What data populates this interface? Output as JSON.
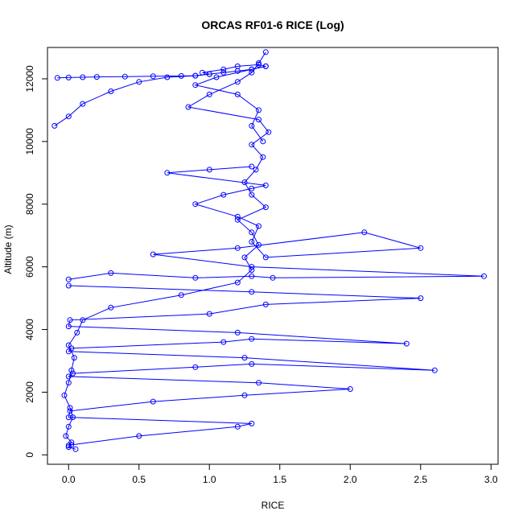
{
  "chart_data": {
    "type": "line",
    "title": "ORCAS RF01-6 RICE (Log)",
    "xlabel": "RICE",
    "ylabel": "Altitude (m)",
    "xlim": [
      -0.15,
      3.05
    ],
    "ylim": [
      -300,
      13000
    ],
    "xticks": [
      0.0,
      0.5,
      1.0,
      1.5,
      2.0,
      2.5,
      3.0
    ],
    "xtick_labels": [
      "0.0",
      "0.5",
      "1.0",
      "1.5",
      "2.0",
      "2.5",
      "3.0"
    ],
    "yticks": [
      0,
      2000,
      4000,
      6000,
      8000,
      10000,
      12000
    ],
    "ytick_labels": [
      "0",
      "2000",
      "4000",
      "6000",
      "8000",
      "10000",
      "12000"
    ],
    "grid": false,
    "legend": "none",
    "markers": "open-circle",
    "line_color": "#0000ff",
    "series": [
      {
        "x": [
          0.05,
          0.0,
          0.02,
          -0.02,
          0.0,
          0.03,
          0.01,
          -0.03,
          0.0,
          0.02,
          0.04,
          0.0,
          0.06,
          0.1,
          0.3,
          0.8,
          1.2,
          1.3,
          1.25,
          1.35,
          1.3,
          1.2,
          1.4,
          1.3,
          1.25,
          1.33,
          1.38,
          1.3,
          1.42,
          1.35,
          0.85,
          1.0,
          1.2,
          1.3,
          1.35,
          1.4
        ],
        "y": [
          180,
          250,
          400,
          600,
          900,
          1200,
          1500,
          1900,
          2300,
          2700,
          3100,
          3500,
          3900,
          4300,
          4700,
          5100,
          5500,
          5900,
          6300,
          6700,
          7100,
          7500,
          7900,
          8300,
          8700,
          9100,
          9500,
          9900,
          10300,
          10700,
          11100,
          11500,
          11900,
          12200,
          12500,
          12850
        ]
      },
      {
        "x": [
          0.0,
          0.02,
          0.5,
          1.2,
          1.3,
          0.0,
          0.01,
          0.6,
          1.25,
          2.0,
          1.35,
          0.0,
          0.03,
          0.9,
          1.3,
          2.6,
          1.25,
          0.0,
          0.02,
          1.1,
          1.3,
          2.4,
          1.2,
          0.0,
          0.01,
          1.0,
          1.4,
          2.5,
          1.3,
          0.0
        ],
        "y": [
          300,
          320,
          600,
          900,
          1000,
          1200,
          1400,
          1700,
          1900,
          2100,
          2300,
          2500,
          2600,
          2800,
          2900,
          2700,
          3100,
          3300,
          3400,
          3600,
          3700,
          3550,
          3900,
          4100,
          4300,
          4500,
          4800,
          5000,
          5200,
          5400
        ]
      },
      {
        "x": [
          0.0,
          0.3,
          0.9,
          1.3,
          1.45,
          2.95,
          1.3,
          0.6,
          1.2,
          2.1,
          2.5,
          1.4,
          1.3,
          1.35,
          1.2,
          0.9,
          1.1,
          1.3,
          1.4,
          0.7,
          1.0,
          1.3
        ],
        "y": [
          5600,
          5800,
          5650,
          5700,
          5650,
          5700,
          6000,
          6400,
          6600,
          7100,
          6600,
          6300,
          6800,
          7300,
          7600,
          8000,
          8300,
          8500,
          8600,
          9000,
          9100,
          9200
        ]
      },
      {
        "x": [
          -0.1,
          0.0,
          0.1,
          0.3,
          0.5,
          0.7,
          0.9,
          1.0,
          0.95,
          1.1,
          1.2,
          1.35,
          1.4,
          1.3,
          1.05,
          0.9,
          1.2,
          1.35,
          1.3,
          1.38
        ],
        "y": [
          10500,
          10800,
          11200,
          11600,
          11900,
          12050,
          12100,
          12150,
          12200,
          12300,
          12400,
          12450,
          12400,
          12300,
          12050,
          11800,
          11500,
          11000,
          10500,
          10000
        ]
      },
      {
        "x": [
          -0.08,
          0.0,
          0.1,
          0.2,
          0.4,
          0.6,
          0.8,
          0.9,
          1.0,
          1.1,
          1.2,
          1.3,
          1.4
        ],
        "y": [
          12030,
          12040,
          12050,
          12060,
          12070,
          12080,
          12090,
          12100,
          12150,
          12200,
          12250,
          12300,
          12400
        ]
      }
    ]
  }
}
